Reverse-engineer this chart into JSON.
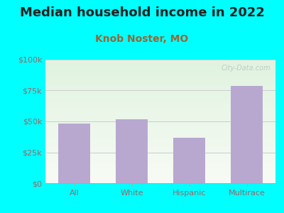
{
  "title": "Median household income in 2022",
  "subtitle": "Knob Noster, MO",
  "categories": [
    "All",
    "White",
    "Hispanic",
    "Multirace"
  ],
  "values": [
    48000,
    52000,
    37000,
    79000
  ],
  "bar_color": "#b8a8d0",
  "background_outer": "#00FFFF",
  "title_color": "#222222",
  "subtitle_color": "#996633",
  "tick_color": "#996666",
  "ytick_labels": [
    "$0",
    "$25k",
    "$50k",
    "$75k",
    "$100k"
  ],
  "ytick_values": [
    0,
    25000,
    50000,
    75000,
    100000
  ],
  "ylim": [
    0,
    100000
  ],
  "watermark": "City-Data.com",
  "title_fontsize": 13,
  "subtitle_fontsize": 10,
  "tick_fontsize": 8
}
